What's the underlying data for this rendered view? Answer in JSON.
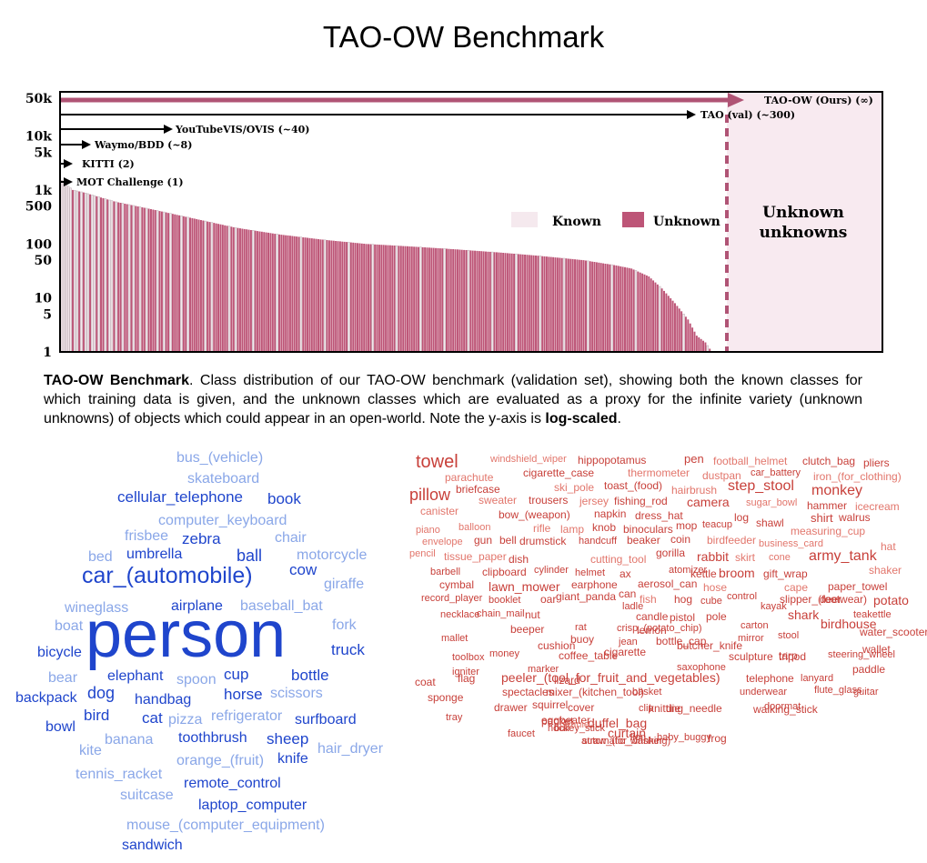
{
  "page": {
    "title": "TAO-OW Benchmark"
  },
  "caption": {
    "lead": "TAO-OW Benchmark",
    "text1": ". Class distribution of our TAO-OW benchmark (validation set), showing both the known classes for which training data is given, and the unknown classes which are evaluated as a proxy for the infinite variety (unknown unknowns) of objects which could appear in an open-world. Note the y-axis is ",
    "emph": "log-scaled",
    "text2": "."
  },
  "chart_data": {
    "type": "bar",
    "y_scale": "log",
    "ylim": [
      1,
      50000
    ],
    "ytick_labels": [
      "50k",
      "10k",
      "5k",
      "1k",
      "500",
      "100",
      "50",
      "10",
      "5",
      "1"
    ],
    "ytick_values": [
      50000,
      10000,
      5000,
      1000,
      500,
      100,
      50,
      10,
      5,
      1
    ],
    "legend": {
      "position": "right",
      "entries": [
        {
          "name": "Known",
          "color": "#f5e9ee"
        },
        {
          "name": "Unknown",
          "color": "#bd5577"
        }
      ]
    },
    "benchmarks": [
      {
        "label": "MOT Challenge (1)",
        "classes": 1
      },
      {
        "label": "KITTI (2)",
        "classes": 2
      },
      {
        "label": "Waymo/BDD (~8)",
        "classes": 8
      },
      {
        "label": "YouTubeVIS/OVIS (~40)",
        "classes": 40
      },
      {
        "label": "TAO (val) (~300)",
        "classes": 300
      },
      {
        "label": "TAO-OW (Ours) (∞)",
        "classes": "∞"
      }
    ],
    "annotation": "Unknown unknowns",
    "class_count": 300,
    "profile": [
      [
        0,
        1500
      ],
      [
        5,
        1000
      ],
      [
        10,
        900
      ],
      [
        25,
        600
      ],
      [
        40,
        450
      ],
      [
        60,
        300
      ],
      [
        80,
        200
      ],
      [
        100,
        150
      ],
      [
        120,
        120
      ],
      [
        140,
        100
      ],
      [
        160,
        90
      ],
      [
        180,
        80
      ],
      [
        200,
        70
      ],
      [
        220,
        60
      ],
      [
        240,
        50
      ],
      [
        255,
        40
      ],
      [
        262,
        35
      ],
      [
        270,
        25
      ],
      [
        276,
        15
      ],
      [
        282,
        8
      ],
      [
        288,
        4
      ],
      [
        292,
        2
      ],
      [
        296,
        1.5
      ],
      [
        299,
        1
      ]
    ],
    "known_fraction_by_rank": [
      [
        0,
        1.0
      ],
      [
        10,
        0.6
      ],
      [
        40,
        0.25
      ],
      [
        100,
        0.05
      ],
      [
        300,
        0.0
      ]
    ],
    "colors": {
      "known": "#f5e9ee",
      "unknown": "#bd5577",
      "arrow": "#b05475",
      "region": "#f8eaf0",
      "frame": "#000000"
    }
  },
  "clouds": {
    "known": {
      "color_dark": "#1f45cc",
      "color_light": "#8aa7e8",
      "words": [
        "person",
        "car_(automobile)",
        "cellular_telephone",
        "book",
        "bus_(vehicle)",
        "skateboard",
        "computer_keyboard",
        "frisbee",
        "zebra",
        "chair",
        "bed",
        "umbrella",
        "ball",
        "motorcycle",
        "cow",
        "giraffe",
        "wineglass",
        "airplane",
        "baseball_bat",
        "boat",
        "fork",
        "bicycle",
        "truck",
        "bear",
        "elephant",
        "spoon",
        "cup",
        "bottle",
        "backpack",
        "dog",
        "handbag",
        "horse",
        "scissors",
        "bird",
        "cat",
        "pizza",
        "refrigerator",
        "surfboard",
        "bowl",
        "banana",
        "toothbrush",
        "sheep",
        "kite",
        "orange_(fruit)",
        "knife",
        "hair_dryer",
        "tennis_racket",
        "remote_control",
        "suitcase",
        "laptop_computer",
        "mouse_(computer_equipment)",
        "sandwich"
      ]
    },
    "unknown": {
      "color_dark": "#c8403a",
      "color_light": "#e2766c",
      "words": [
        "towel",
        "windshield_wiper",
        "hippopotamus",
        "pen",
        "football_helmet",
        "clutch_bag",
        "pliers",
        "parachute",
        "cigarette_case",
        "thermometer",
        "dustpan",
        "car_battery",
        "iron_(for_clothing)",
        "pillow",
        "briefcase",
        "ski_pole",
        "toast_(food)",
        "hairbrush",
        "step_stool",
        "monkey",
        "canister",
        "sweater",
        "trousers",
        "jersey",
        "fishing_rod",
        "camera",
        "sugar_bowl",
        "hammer",
        "icecream",
        "bow_(weapon)",
        "napkin",
        "dress_hat",
        "log",
        "shawl",
        "shirt",
        "walrus",
        "piano",
        "balloon",
        "rifle",
        "lamp",
        "knob",
        "binoculars",
        "mop",
        "teacup",
        "measuring_cup",
        "envelope",
        "gun",
        "bell",
        "drumstick",
        "handcuff",
        "beaker",
        "coin",
        "birdfeeder",
        "business_card",
        "hat",
        "pencil",
        "tissue_paper",
        "dish",
        "cutting_tool",
        "gorilla",
        "rabbit",
        "skirt",
        "cone",
        "army_tank",
        "barbell",
        "clipboard",
        "cylinder",
        "helmet",
        "ax",
        "atomizer",
        "kettle",
        "broom",
        "gift_wrap",
        "shaker",
        "cymbal",
        "lawn_mower",
        "earphone",
        "aerosol_can",
        "hose",
        "cape",
        "paper_towel",
        "record_player",
        "booklet",
        "oar",
        "giant_panda",
        "can",
        "fish",
        "hog",
        "cube",
        "control",
        "slipper_(footwear)",
        "deer",
        "potato",
        "necklace",
        "chain_mail",
        "nut",
        "ladle",
        "candle",
        "pistol",
        "pole",
        "kayak",
        "shark",
        "teakettle",
        "beeper",
        "rat",
        "crisp_(potato_chip)",
        "lemon",
        "carton",
        "birdhouse",
        "stool",
        "water_scooter",
        "mallet",
        "buoy",
        "jean",
        "mirror",
        "cushion",
        "bottle_cap",
        "butcher_knife",
        "tripod",
        "wallet",
        "toolbox",
        "money",
        "coffee_table",
        "cigarette",
        "sculpture",
        "tarp",
        "steering_wheel",
        "igniter",
        "saxophone",
        "marker",
        "paddle",
        "coat",
        "flag",
        "peeler_(tool_for_fruit_and_vegetables)",
        "lizard",
        "telephone",
        "lanyard",
        "spectacles",
        "mixer_(kitchen_tool)",
        "basket",
        "underwear",
        "flute_glass",
        "guitar",
        "sponge",
        "drawer",
        "squirrel",
        "cover",
        "clip",
        "knitting_needle",
        "die",
        "walking_stick",
        "doormat",
        "tray",
        "packet",
        "eggbeater",
        "hockey_stick",
        "duffel_bag",
        "faucet",
        "bull",
        "straw_(for_drinking)",
        "lion",
        "baby_buggy",
        "frog",
        "curtain",
        "beanie",
        "automatic_washer"
      ]
    }
  }
}
